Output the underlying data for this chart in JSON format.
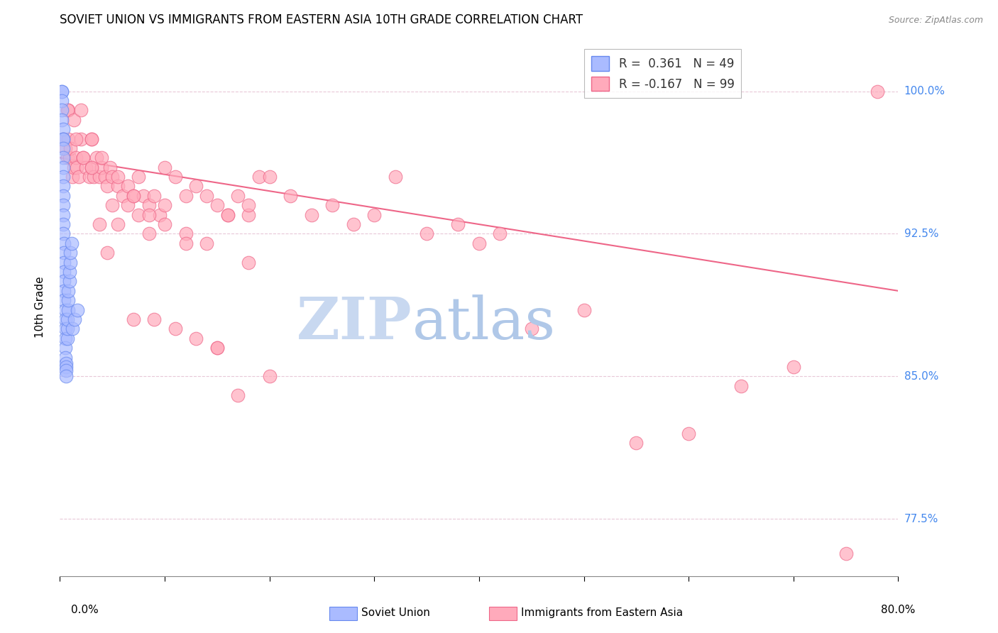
{
  "title": "SOVIET UNION VS IMMIGRANTS FROM EASTERN ASIA 10TH GRADE CORRELATION CHART",
  "source": "Source: ZipAtlas.com",
  "ylabel": "10th Grade",
  "ytick_labels": [
    "100.0%",
    "92.5%",
    "85.0%",
    "77.5%"
  ],
  "ytick_values": [
    1.0,
    0.925,
    0.85,
    0.775
  ],
  "xmin": 0.0,
  "xmax": 0.8,
  "ymin": 0.745,
  "ymax": 1.028,
  "legend_blue_r": "0.361",
  "legend_blue_n": "49",
  "legend_pink_r": "-0.167",
  "legend_pink_n": "99",
  "blue_color": "#AABBFF",
  "blue_edge": "#6688EE",
  "pink_color": "#FFAABB",
  "pink_edge": "#EE6688",
  "trend_color": "#EE6688",
  "watermark_zip": "ZIP",
  "watermark_atlas": "atlas",
  "watermark_color_zip": "#C8D8F0",
  "watermark_color_atlas": "#B0C8E8",
  "blue_x": [
    0.002,
    0.002,
    0.002,
    0.002,
    0.002,
    0.003,
    0.003,
    0.003,
    0.003,
    0.003,
    0.003,
    0.003,
    0.003,
    0.003,
    0.003,
    0.003,
    0.003,
    0.003,
    0.004,
    0.004,
    0.004,
    0.004,
    0.004,
    0.004,
    0.004,
    0.005,
    0.005,
    0.005,
    0.005,
    0.005,
    0.005,
    0.006,
    0.006,
    0.006,
    0.006,
    0.007,
    0.007,
    0.007,
    0.008,
    0.008,
    0.008,
    0.009,
    0.009,
    0.01,
    0.01,
    0.011,
    0.012,
    0.014,
    0.017
  ],
  "blue_y": [
    1.0,
    1.0,
    0.995,
    0.99,
    0.985,
    0.98,
    0.975,
    0.975,
    0.97,
    0.965,
    0.96,
    0.955,
    0.95,
    0.945,
    0.94,
    0.935,
    0.93,
    0.925,
    0.92,
    0.915,
    0.91,
    0.905,
    0.9,
    0.895,
    0.89,
    0.885,
    0.88,
    0.875,
    0.87,
    0.865,
    0.86,
    0.857,
    0.855,
    0.853,
    0.85,
    0.87,
    0.875,
    0.88,
    0.885,
    0.89,
    0.895,
    0.9,
    0.905,
    0.91,
    0.915,
    0.92,
    0.875,
    0.88,
    0.885
  ],
  "pink_x": [
    0.003,
    0.005,
    0.007,
    0.008,
    0.009,
    0.01,
    0.012,
    0.013,
    0.015,
    0.016,
    0.018,
    0.02,
    0.022,
    0.025,
    0.028,
    0.03,
    0.032,
    0.035,
    0.038,
    0.04,
    0.043,
    0.045,
    0.048,
    0.05,
    0.055,
    0.06,
    0.065,
    0.07,
    0.075,
    0.08,
    0.085,
    0.09,
    0.095,
    0.1,
    0.11,
    0.12,
    0.13,
    0.14,
    0.15,
    0.16,
    0.17,
    0.18,
    0.19,
    0.2,
    0.22,
    0.24,
    0.26,
    0.28,
    0.3,
    0.32,
    0.35,
    0.38,
    0.4,
    0.42,
    0.45,
    0.5,
    0.55,
    0.6,
    0.65,
    0.7,
    0.75,
    0.78,
    0.008,
    0.015,
    0.022,
    0.03,
    0.038,
    0.045,
    0.055,
    0.065,
    0.075,
    0.085,
    0.1,
    0.12,
    0.14,
    0.16,
    0.18,
    0.2,
    0.03,
    0.05,
    0.07,
    0.09,
    0.11,
    0.13,
    0.15,
    0.17,
    0.007,
    0.013,
    0.02,
    0.03,
    0.04,
    0.055,
    0.07,
    0.085,
    0.1,
    0.12,
    0.15,
    0.18
  ],
  "pink_y": [
    0.975,
    0.97,
    0.965,
    0.975,
    0.965,
    0.97,
    0.955,
    0.96,
    0.965,
    0.96,
    0.955,
    0.975,
    0.965,
    0.96,
    0.955,
    0.96,
    0.955,
    0.965,
    0.955,
    0.96,
    0.955,
    0.95,
    0.96,
    0.955,
    0.95,
    0.945,
    0.95,
    0.945,
    0.955,
    0.945,
    0.94,
    0.945,
    0.935,
    0.94,
    0.955,
    0.945,
    0.95,
    0.945,
    0.94,
    0.935,
    0.945,
    0.935,
    0.955,
    0.955,
    0.945,
    0.935,
    0.94,
    0.93,
    0.935,
    0.955,
    0.925,
    0.93,
    0.92,
    0.925,
    0.875,
    0.885,
    0.815,
    0.82,
    0.845,
    0.855,
    0.757,
    1.0,
    0.99,
    0.975,
    0.965,
    0.96,
    0.93,
    0.915,
    0.93,
    0.94,
    0.935,
    0.925,
    0.96,
    0.925,
    0.92,
    0.935,
    0.94,
    0.85,
    0.975,
    0.94,
    0.88,
    0.88,
    0.875,
    0.87,
    0.865,
    0.84,
    0.99,
    0.985,
    0.99,
    0.975,
    0.965,
    0.955,
    0.945,
    0.935,
    0.93,
    0.92,
    0.865,
    0.91
  ],
  "trend_x0": 0.0,
  "trend_x1": 0.8,
  "trend_y0": 0.965,
  "trend_y1": 0.895
}
